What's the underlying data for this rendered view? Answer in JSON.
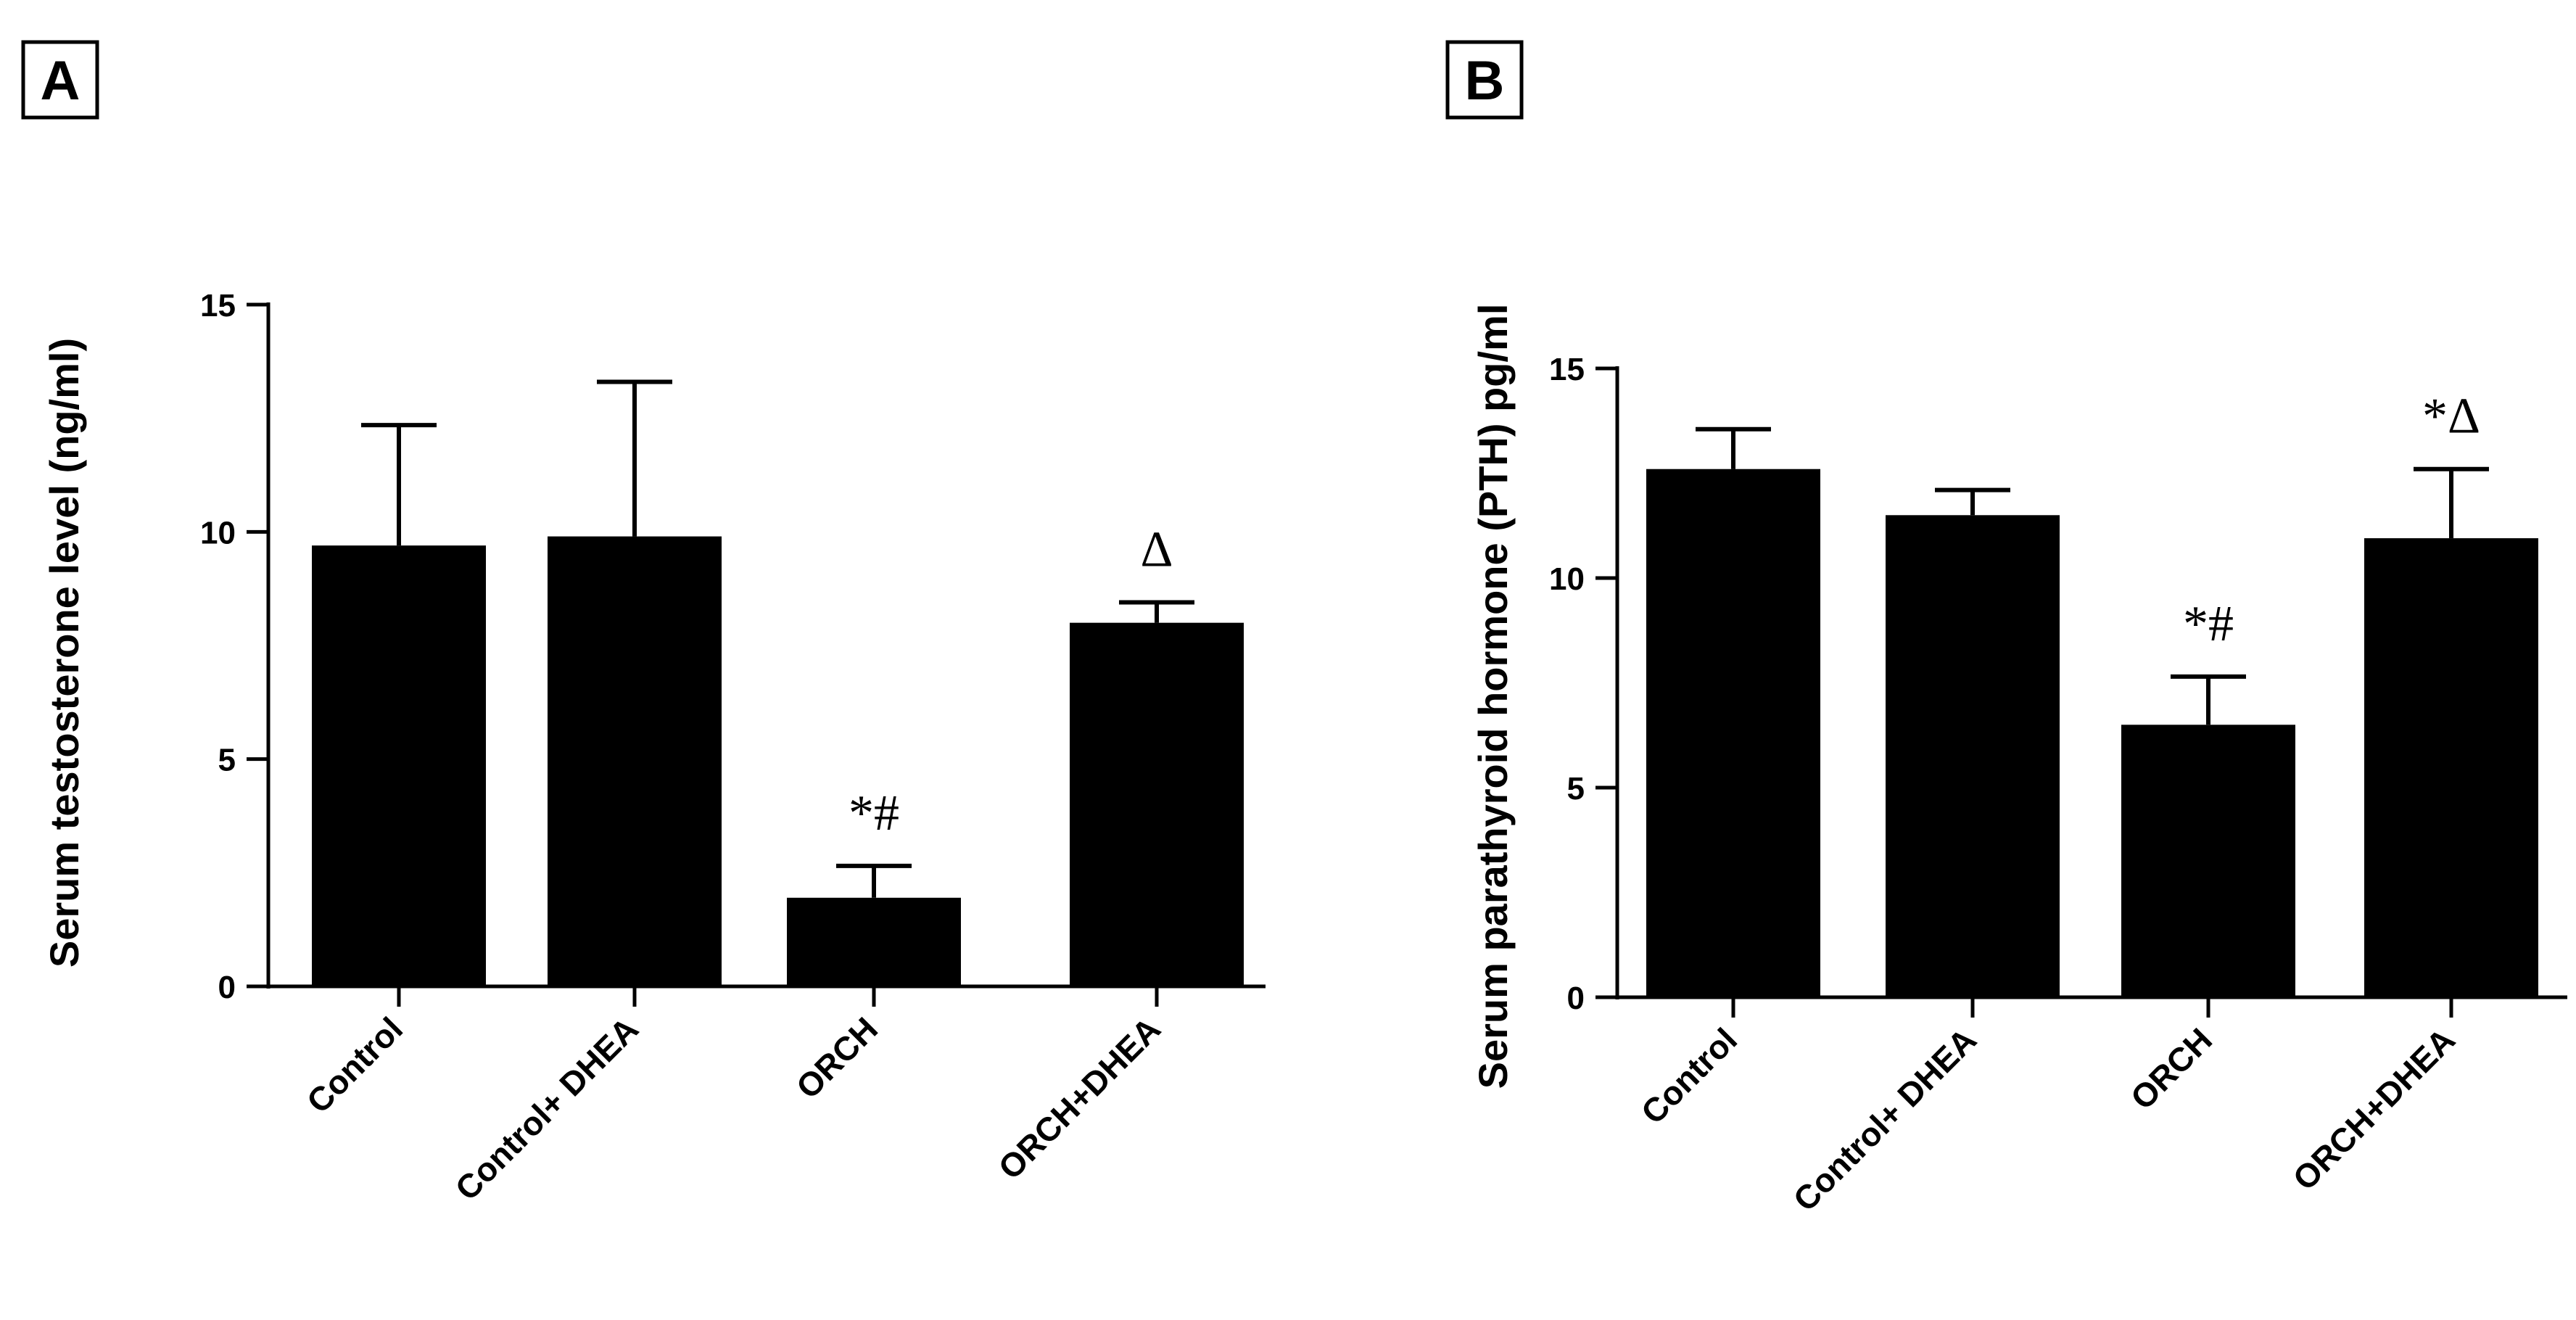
{
  "figure": {
    "colors": {
      "bar": "#000000",
      "axis": "#000000",
      "background": "#ffffff"
    }
  },
  "chart_data": [
    {
      "panel": "A",
      "type": "bar",
      "title": "",
      "xlabel": "",
      "ylabel": "Serum testosterone level  (ng/ml)",
      "ylim": [
        0,
        15
      ],
      "yticks": [
        0,
        5,
        10,
        15
      ],
      "categories": [
        "Control",
        "Control+ DHEA",
        "ORCH",
        "ORCH+DHEA"
      ],
      "values": [
        9.7,
        9.9,
        1.95,
        8.0
      ],
      "errors": [
        2.65,
        3.4,
        0.7,
        0.45
      ],
      "annotations": [
        "",
        "",
        "*#",
        "Δ"
      ]
    },
    {
      "panel": "B",
      "type": "bar",
      "title": "",
      "xlabel": "",
      "ylabel": "Serum  parathyroid hormone (PTH) pg/ml",
      "ylim": [
        0,
        15
      ],
      "yticks": [
        0,
        5,
        10,
        15
      ],
      "categories": [
        "Control",
        "Control+ DHEA",
        "ORCH",
        "ORCH+DHEA"
      ],
      "values": [
        12.6,
        11.5,
        6.5,
        10.95
      ],
      "errors": [
        0.95,
        0.6,
        1.15,
        1.65
      ],
      "annotations": [
        "",
        "",
        "*#",
        "*Δ"
      ]
    }
  ]
}
